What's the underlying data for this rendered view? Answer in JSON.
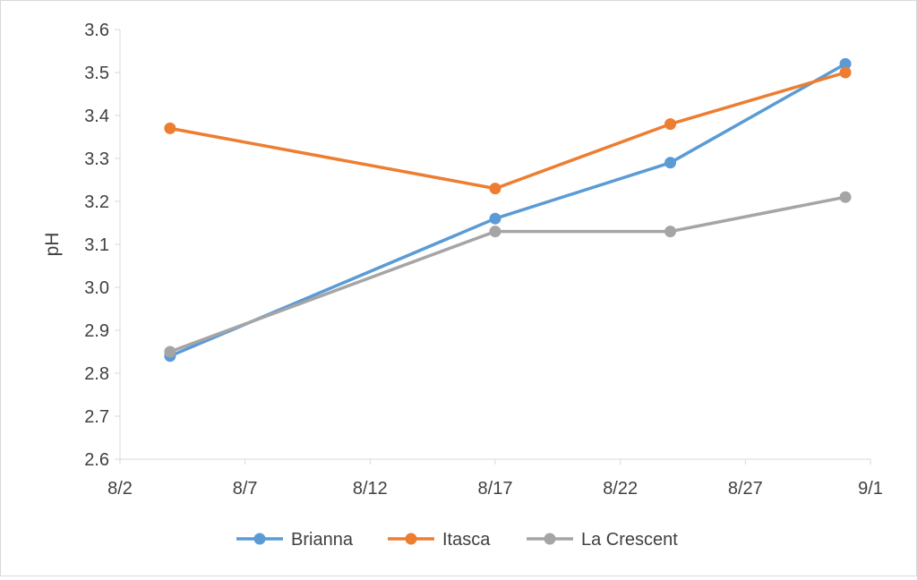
{
  "chart_data": {
    "type": "line",
    "title": "",
    "xlabel": "",
    "ylabel": "pH",
    "x_ticks": [
      "8/2",
      "8/7",
      "8/12",
      "8/17",
      "8/22",
      "8/27",
      "9/1"
    ],
    "y_ticks": [
      "2.6",
      "2.7",
      "2.8",
      "2.9",
      "3.0",
      "3.1",
      "3.2",
      "3.3",
      "3.4",
      "3.5",
      "3.6"
    ],
    "xlim": [
      "8/2",
      "9/1"
    ],
    "ylim": [
      2.6,
      3.6
    ],
    "grid": false,
    "legend_position": "bottom",
    "series": [
      {
        "name": "Brianna",
        "color": "#5b9bd5",
        "points": [
          {
            "x": "8/4",
            "y": 2.84
          },
          {
            "x": "8/17",
            "y": 3.16
          },
          {
            "x": "8/24",
            "y": 3.29
          },
          {
            "x": "8/31",
            "y": 3.52
          }
        ]
      },
      {
        "name": "Itasca",
        "color": "#ed7d31",
        "points": [
          {
            "x": "8/4",
            "y": 3.37
          },
          {
            "x": "8/17",
            "y": 3.23
          },
          {
            "x": "8/24",
            "y": 3.38
          },
          {
            "x": "8/31",
            "y": 3.5
          }
        ]
      },
      {
        "name": "La Crescent",
        "color": "#a5a5a5",
        "points": [
          {
            "x": "8/4",
            "y": 2.85
          },
          {
            "x": "8/17",
            "y": 3.13
          },
          {
            "x": "8/24",
            "y": 3.13
          },
          {
            "x": "8/31",
            "y": 3.21
          }
        ]
      }
    ]
  }
}
